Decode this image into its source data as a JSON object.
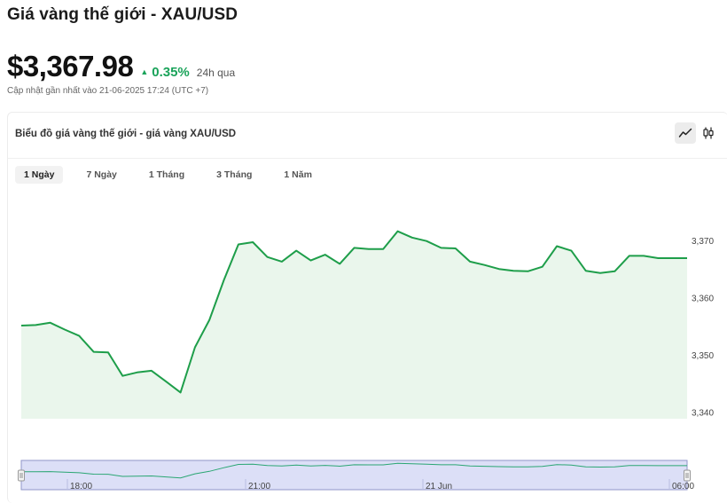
{
  "header": {
    "title": "Giá vàng thế giới - XAU/USD",
    "price": "$3,367.98",
    "change_arrow": "▲",
    "change_percent": "0.35%",
    "change_period": "24h qua",
    "updated": "Cập nhật gần nhất vào 21-06-2025 17:24 (UTC +7)"
  },
  "card": {
    "title": "Biểu đồ giá vàng thế giới - giá vàng XAU/USD",
    "tabs": [
      {
        "label": "1 Ngày",
        "active": true
      },
      {
        "label": "7 Ngày",
        "active": false
      },
      {
        "label": "1 Tháng",
        "active": false
      },
      {
        "label": "3 Tháng",
        "active": false
      },
      {
        "label": "1 Năm",
        "active": false
      }
    ],
    "view_icons": [
      "line-chart-icon",
      "candlestick-icon"
    ]
  },
  "colors": {
    "line": "#1e9e4a",
    "area": "#eaf6ec",
    "navigator_fill": "#dcdff7",
    "navigator_border": "#8f96c9",
    "accent_up": "#1aa35a"
  },
  "chart_data": {
    "type": "area",
    "title": "",
    "xlabel": "",
    "ylabel": "",
    "ylim": [
      3338.9,
      3371.5
    ],
    "yticks": [
      3340,
      3350,
      3360,
      3370
    ],
    "ytick_labels": [
      "3,340",
      "3,350",
      "3,360",
      "3,370"
    ],
    "series": [
      {
        "values": [
          3355.2,
          3355.3,
          3355.7,
          3354.5,
          3353.4,
          3350.6,
          3350.5,
          3346.4,
          3347.0,
          3347.3,
          3345.4,
          3343.5,
          3351.4,
          3356.2,
          3363.2,
          3369.4,
          3369.8,
          3367.2,
          3366.4,
          3368.3,
          3366.6,
          3367.6,
          3366.0,
          3368.8,
          3368.6,
          3368.6,
          3371.7,
          3370.6,
          3370.0,
          3368.8,
          3368.7,
          3366.4,
          3365.8,
          3365.1,
          3364.8,
          3364.7,
          3365.5,
          3369.1,
          3368.3,
          3364.8,
          3364.4,
          3364.7,
          3367.4,
          3367.4,
          3367.0,
          3367.0,
          3367.0
        ]
      }
    ],
    "navigator_labels": [
      "18:00",
      "21:00",
      "21 Jun",
      "06:00"
    ]
  }
}
